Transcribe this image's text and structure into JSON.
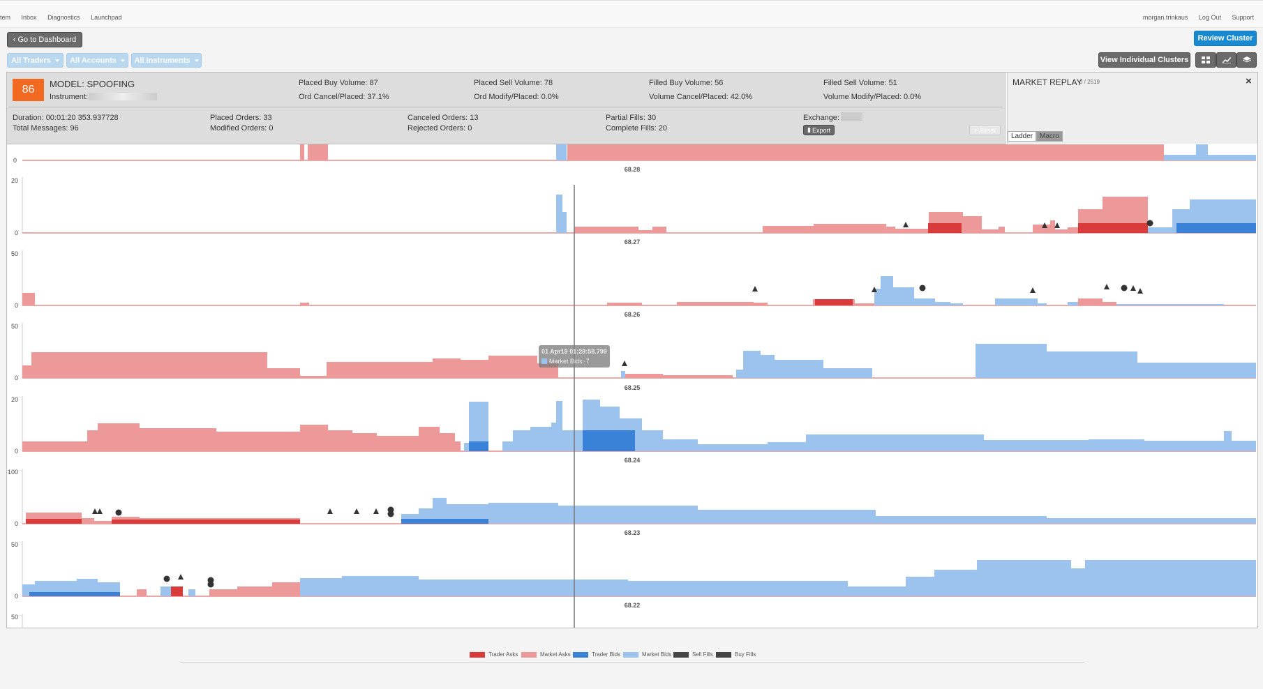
{
  "nav": {
    "left": [
      "tem",
      "Inbox",
      "Diagnostics",
      "Launchpad"
    ],
    "right": [
      "morgan.trinkaus",
      "Log Out",
      "Support"
    ]
  },
  "toolbar": {
    "dashboard": "Go to Dashboard",
    "review": "Review Cluster",
    "filters": [
      "All Traders",
      "All Accounts",
      "All Instruments"
    ],
    "view_clusters": "View Individual Clusters"
  },
  "summary": {
    "score": "86",
    "model": "MODEL: SPOOFING",
    "instrument_label": "Instrument:",
    "placed_buy": "Placed Buy Volume: 87",
    "placed_sell": "Placed Sell Volume: 78",
    "filled_buy": "Filled Buy Volume: 56",
    "filled_sell": "Filled Sell Volume: 51",
    "ord_cancel": "Ord Cancel/Placed: 37.1%",
    "ord_modify": "Ord Modify/Placed: 0.0%",
    "vol_cancel": "Volume Cancel/Placed: 42.0%",
    "vol_modify": "Volume Modify/Placed: 0.0%",
    "duration": "Duration: 00:01:20 353.937728",
    "total_messages": "Total Messages: 96",
    "placed_orders": "Placed Orders: 33",
    "modified_orders": "Modified Orders: 0",
    "canceled_orders": "Canceled Orders: 13",
    "rejected_orders": "Rejected Orders: 0",
    "partial_fills": "Partial Fills: 30",
    "complete_fills": "Complete Fills: 20",
    "exchange_label": "Exchange:",
    "export": "Export",
    "reset": "Reset"
  },
  "replay": {
    "title": "MARKET REPLAY",
    "counter": "0 / 2519",
    "close": "×",
    "tabs": [
      "Ladder",
      "Macro"
    ]
  },
  "tooltip": {
    "time": "01 Apr19 01:28:58.799",
    "value": "Market Bids: 7"
  },
  "chart_data": {
    "type": "area",
    "price_levels": [
      {
        "price": "68.28",
        "ymax": 20
      },
      {
        "price": "68.27",
        "ymax": 50
      },
      {
        "price": "68.26",
        "ymax": 50
      },
      {
        "price": "68.25",
        "ymax": 20
      },
      {
        "price": "68.24",
        "ymax": 100
      },
      {
        "price": "68.23",
        "ymax": 50
      },
      {
        "price": "68.22",
        "ymax": 50
      }
    ],
    "legend": [
      {
        "name": "Trader Asks",
        "color": "#d93a3a"
      },
      {
        "name": "Market Asks",
        "color": "#ee9999"
      },
      {
        "name": "Trader Bids",
        "color": "#3a82d8"
      },
      {
        "name": "Market Bids",
        "color": "#9cc3ee"
      },
      {
        "name": "Sell Fills",
        "color": "#444444"
      },
      {
        "name": "Buy Fills",
        "color": "#444444"
      }
    ]
  }
}
